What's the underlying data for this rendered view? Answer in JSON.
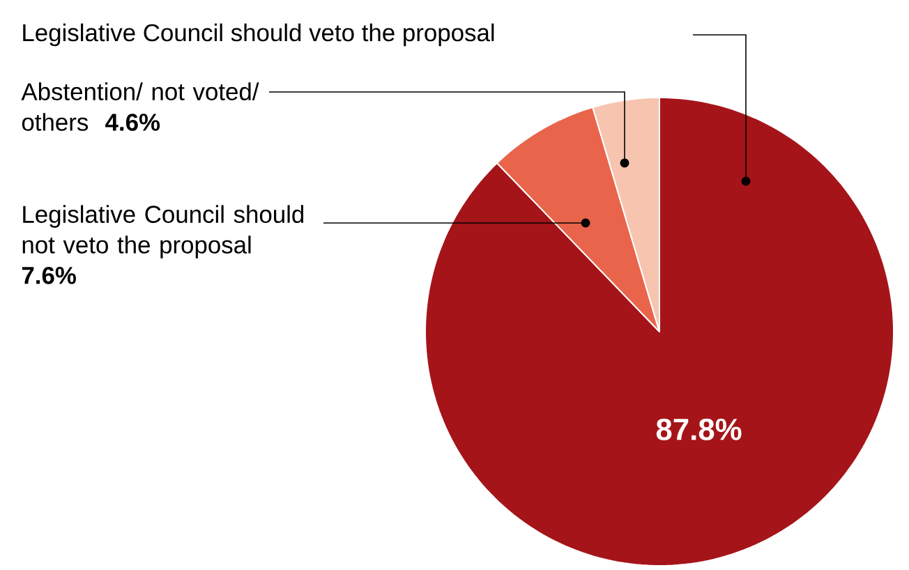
{
  "chart_data": {
    "type": "pie",
    "categories": [
      "Legislative Council should veto the proposal",
      "Legislative Council should not veto the proposal",
      "Abstention/ not voted/ others"
    ],
    "values": [
      87.8,
      7.6,
      4.6
    ],
    "colors": [
      "#a51419",
      "#e8654b",
      "#f7c4b0"
    ],
    "value_labels": [
      "87.8%",
      "7.6%",
      "4.6%"
    ]
  }
}
